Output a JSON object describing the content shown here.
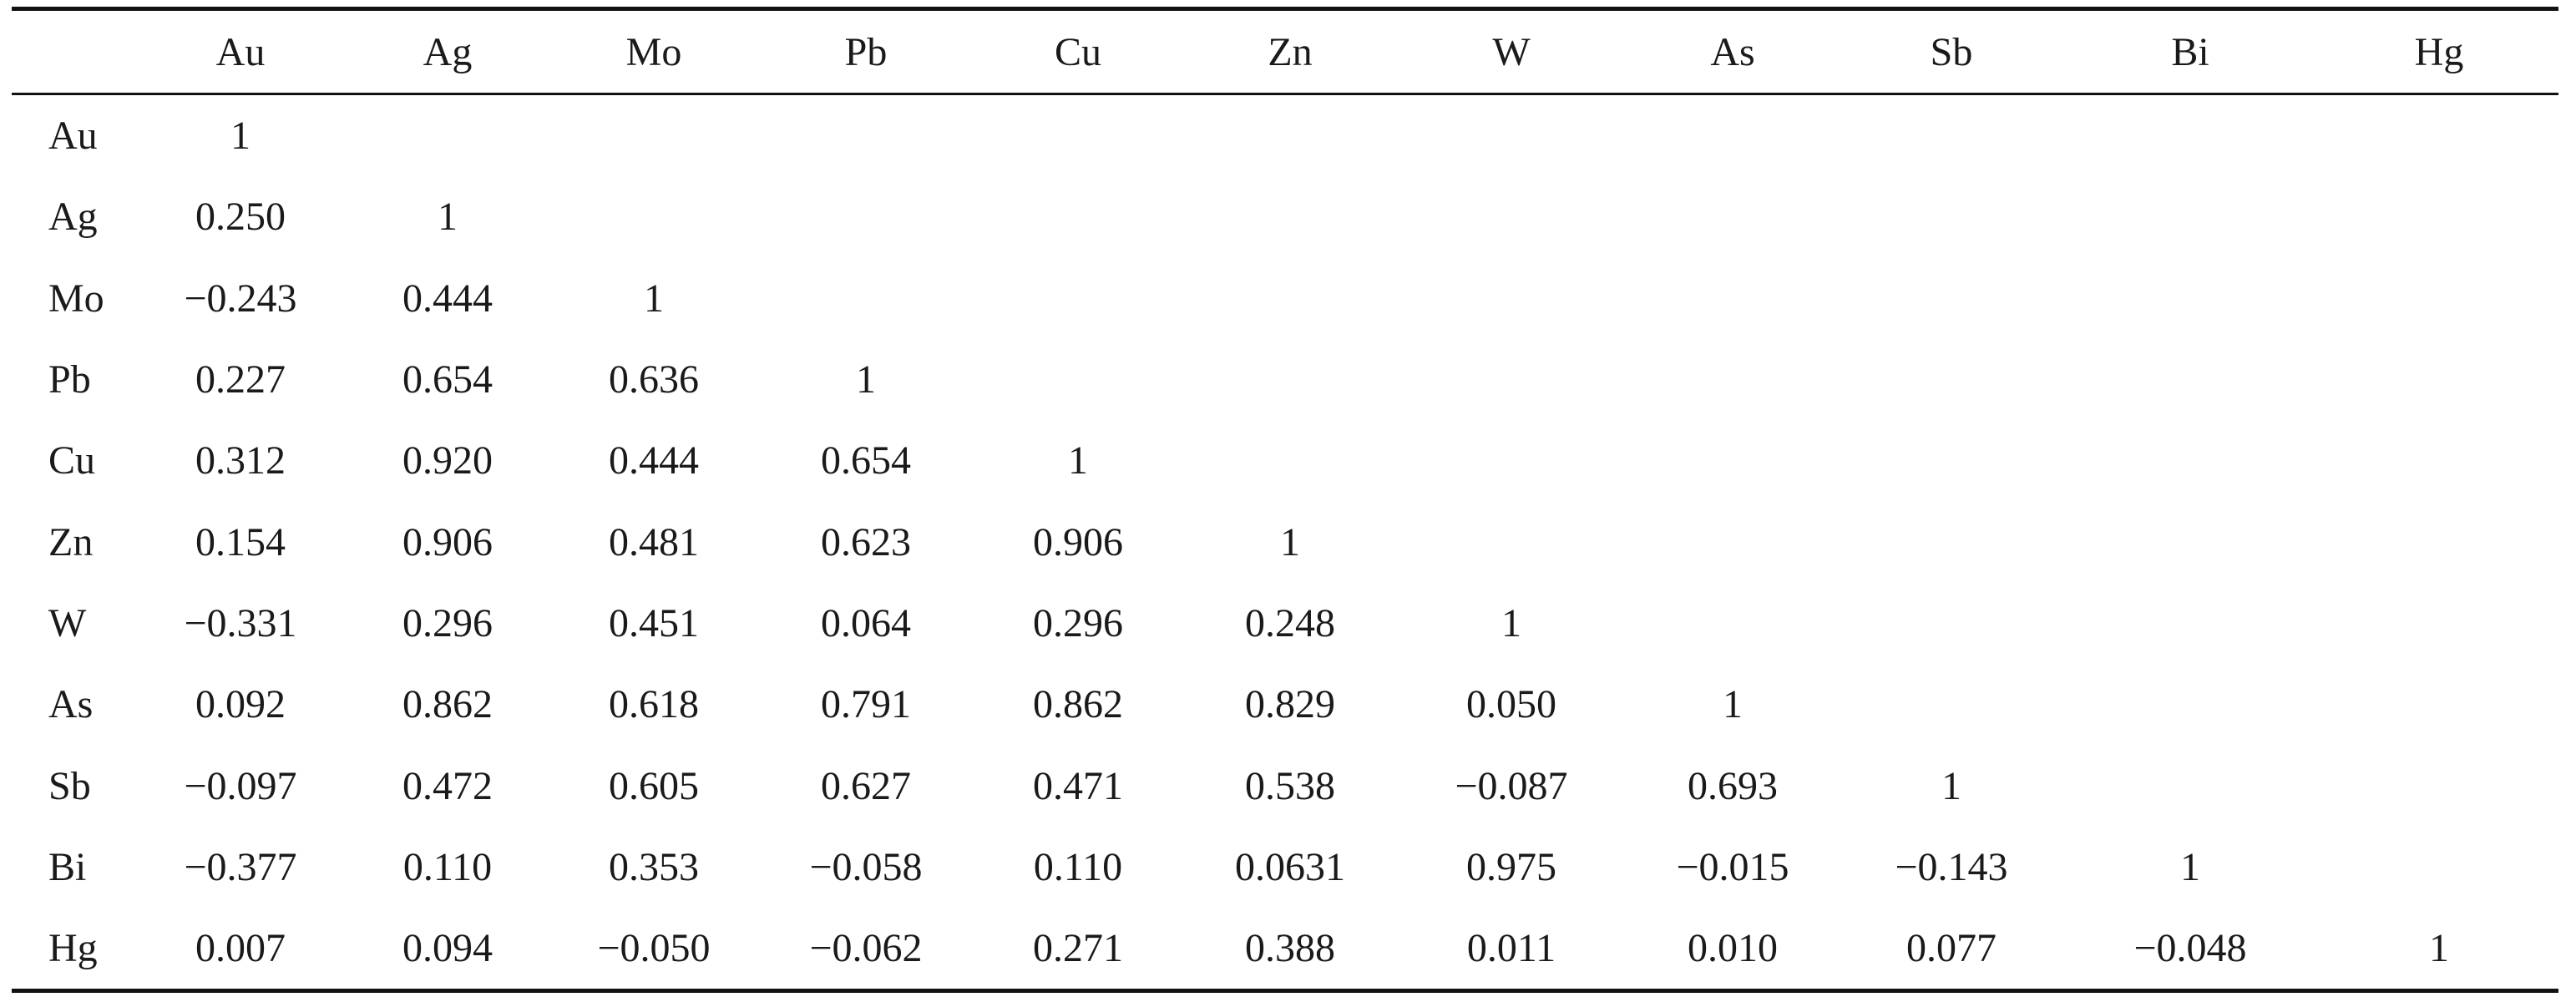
{
  "chart_data": {
    "type": "table",
    "columns": [
      "Au",
      "Ag",
      "Mo",
      "Pb",
      "Cu",
      "Zn",
      "W",
      "As",
      "Sb",
      "Bi",
      "Hg"
    ],
    "rows": [
      {
        "label": "Au",
        "values": [
          "1",
          "",
          "",
          "",
          "",
          "",
          "",
          "",
          "",
          "",
          ""
        ]
      },
      {
        "label": "Ag",
        "values": [
          "0.250",
          "1",
          "",
          "",
          "",
          "",
          "",
          "",
          "",
          "",
          ""
        ]
      },
      {
        "label": "Mo",
        "values": [
          "−0.243",
          "0.444",
          "1",
          "",
          "",
          "",
          "",
          "",
          "",
          "",
          ""
        ]
      },
      {
        "label": "Pb",
        "values": [
          "0.227",
          "0.654",
          "0.636",
          "1",
          "",
          "",
          "",
          "",
          "",
          "",
          ""
        ]
      },
      {
        "label": "Cu",
        "values": [
          "0.312",
          "0.920",
          "0.444",
          "0.654",
          "1",
          "",
          "",
          "",
          "",
          "",
          ""
        ]
      },
      {
        "label": "Zn",
        "values": [
          "0.154",
          "0.906",
          "0.481",
          "0.623",
          "0.906",
          "1",
          "",
          "",
          "",
          "",
          ""
        ]
      },
      {
        "label": "W",
        "values": [
          "−0.331",
          "0.296",
          "0.451",
          "0.064",
          "0.296",
          "0.248",
          "1",
          "",
          "",
          "",
          ""
        ]
      },
      {
        "label": "As",
        "values": [
          "0.092",
          "0.862",
          "0.618",
          "0.791",
          "0.862",
          "0.829",
          "0.050",
          "1",
          "",
          "",
          ""
        ]
      },
      {
        "label": "Sb",
        "values": [
          "−0.097",
          "0.472",
          "0.605",
          "0.627",
          "0.471",
          "0.538",
          "−0.087",
          "0.693",
          "1",
          "",
          ""
        ]
      },
      {
        "label": "Bi",
        "values": [
          "−0.377",
          "0.110",
          "0.353",
          "−0.058",
          "0.110",
          "0.0631",
          "0.975",
          "−0.015",
          "−0.143",
          "1",
          ""
        ]
      },
      {
        "label": "Hg",
        "values": [
          "0.007",
          "0.094",
          "−0.050",
          "−0.062",
          "0.271",
          "0.388",
          "0.011",
          "0.010",
          "0.077",
          "−0.048",
          "1"
        ]
      }
    ]
  }
}
